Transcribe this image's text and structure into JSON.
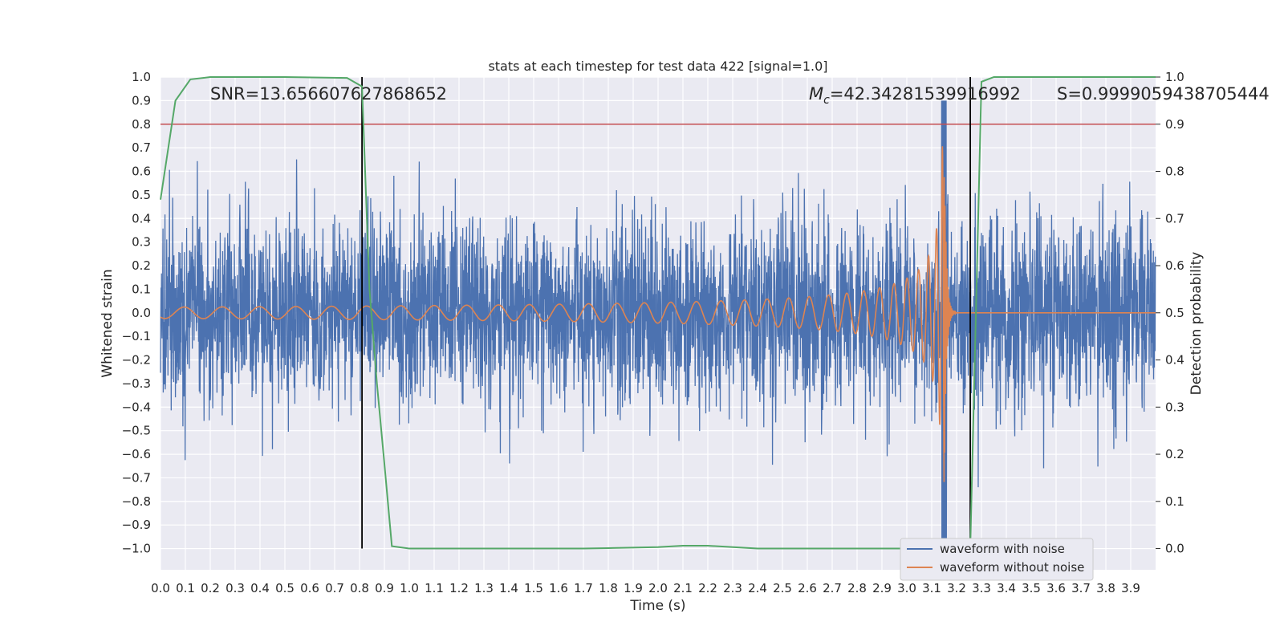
{
  "chart_data": {
    "type": "line",
    "title": "stats at each timestep for test data 422 [signal=1.0]",
    "xlabel": "Time (s)",
    "ylabel": "Whitened strain",
    "y2label": "Detection probability",
    "xlim": [
      0.0,
      4.0
    ],
    "ylim": [
      -1.09,
      1.0
    ],
    "y2lim": [
      -0.045,
      1.0
    ],
    "x_ticks": [
      0.0,
      0.1,
      0.2,
      0.3,
      0.4,
      0.5,
      0.6,
      0.7,
      0.8,
      0.9,
      1.0,
      1.1,
      1.2,
      1.3,
      1.4,
      1.5,
      1.6,
      1.7,
      1.8,
      1.9,
      2.0,
      2.1,
      2.2,
      2.3,
      2.4,
      2.5,
      2.6,
      2.7,
      2.8,
      2.9,
      3.0,
      3.1,
      3.2,
      3.3,
      3.4,
      3.5,
      3.6,
      3.7,
      3.8,
      3.9
    ],
    "y_ticks": [
      -1.0,
      -0.9,
      -0.8,
      -0.7,
      -0.6,
      -0.5,
      -0.4,
      -0.3,
      -0.2,
      -0.1,
      0.0,
      0.1,
      0.2,
      0.3,
      0.4,
      0.5,
      0.6,
      0.7,
      0.8,
      0.9,
      1.0
    ],
    "y2_ticks": [
      0.0,
      0.1,
      0.2,
      0.3,
      0.4,
      0.5,
      0.6,
      0.7,
      0.8,
      0.9,
      1.0
    ],
    "grid": true,
    "legend": "bottom-right",
    "colors": {
      "noise": "#4c72b0",
      "signal": "#dd8452",
      "probability": "#55a868",
      "threshold": "#c44e52",
      "markers": "#000000",
      "background": "#eaeaf2"
    },
    "series": [
      {
        "name": "waveform with noise",
        "type": "line",
        "description_free": true,
        "amplitude_range": [
          -1.0,
          0.9
        ]
      },
      {
        "name": "waveform without noise",
        "type": "line",
        "merger_time": 3.15,
        "peak_amplitude": 0.76
      }
    ],
    "detection_probability": {
      "x": [
        0.0,
        0.06,
        0.12,
        0.2,
        0.3,
        0.5,
        0.75,
        0.81,
        0.84,
        0.87,
        0.9,
        0.93,
        1.0,
        1.2,
        1.5,
        1.7,
        1.8,
        2.0,
        2.1,
        2.2,
        2.4,
        2.6,
        2.8,
        3.0,
        3.1,
        3.2,
        3.255,
        3.28,
        3.3,
        3.35,
        3.5,
        3.7,
        3.9,
        4.0
      ],
      "y": [
        0.74,
        0.95,
        0.995,
        1.0,
        1.0,
        1.0,
        0.998,
        0.98,
        0.55,
        0.35,
        0.18,
        0.005,
        0.0,
        0.0,
        0.0,
        0.0,
        0.001,
        0.003,
        0.006,
        0.006,
        0.0,
        0.0,
        0.0,
        0.0,
        0.0,
        0.0,
        0.0,
        0.55,
        0.99,
        1.0,
        1.0,
        1.0,
        1.0,
        1.0
      ]
    },
    "threshold_y2": 0.9,
    "vertical_lines": [
      0.81,
      3.255
    ],
    "annotations": {
      "snr": "SNR=13.656607627868652",
      "mc_symbol": "M",
      "mc_sub": "c",
      "mc_value": "=42.34281539916992",
      "s": "S=0.9999059438705444"
    }
  }
}
